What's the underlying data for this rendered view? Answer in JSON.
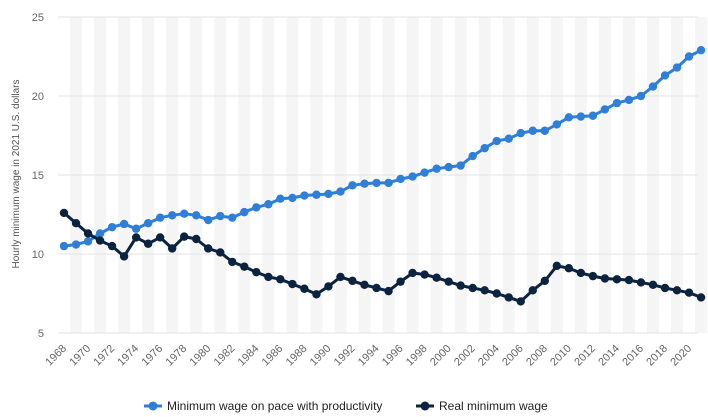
{
  "chart_data": {
    "type": "line",
    "title": "",
    "xlabel": "",
    "ylabel": "Hourly minimum wage in 2021 U.S. dollars",
    "ylim": [
      5,
      25
    ],
    "yticks": [
      5,
      10,
      15,
      20,
      25
    ],
    "xlim": [
      1968,
      2021
    ],
    "x": [
      1968,
      1969,
      1970,
      1971,
      1972,
      1973,
      1974,
      1975,
      1976,
      1977,
      1978,
      1979,
      1980,
      1981,
      1982,
      1983,
      1984,
      1985,
      1986,
      1987,
      1988,
      1989,
      1990,
      1991,
      1992,
      1993,
      1994,
      1995,
      1996,
      1997,
      1998,
      1999,
      2000,
      2001,
      2002,
      2003,
      2004,
      2005,
      2006,
      2007,
      2008,
      2009,
      2010,
      2011,
      2012,
      2013,
      2014,
      2015,
      2016,
      2017,
      2018,
      2019,
      2020,
      2021
    ],
    "xtick_labels": [
      "1968",
      "1970",
      "1972",
      "1974",
      "1976",
      "1978",
      "1980",
      "1982",
      "1984",
      "1986",
      "1988",
      "1990",
      "1992",
      "1994",
      "1996",
      "1998",
      "2000",
      "2002",
      "2004",
      "2006",
      "2008",
      "2010",
      "2012",
      "2014",
      "2016",
      "2018",
      "2020"
    ],
    "grid": true,
    "legend_position": "bottom",
    "series": [
      {
        "name": "Minimum wage on pace with productivity",
        "color": "#2f7ed8",
        "values": [
          10.5,
          10.6,
          10.8,
          11.3,
          11.7,
          11.9,
          11.6,
          11.95,
          12.3,
          12.45,
          12.55,
          12.45,
          12.15,
          12.4,
          12.3,
          12.65,
          12.95,
          13.15,
          13.5,
          13.55,
          13.7,
          13.75,
          13.8,
          13.95,
          14.35,
          14.45,
          14.5,
          14.5,
          14.75,
          14.9,
          15.15,
          15.4,
          15.5,
          15.6,
          16.2,
          16.7,
          17.15,
          17.3,
          17.65,
          17.8,
          17.8,
          18.2,
          18.65,
          18.7,
          18.75,
          19.15,
          19.55,
          19.75,
          20.0,
          20.6,
          21.3,
          21.8,
          22.5,
          22.9
        ]
      },
      {
        "name": "Real minimum wage",
        "color": "#0c2340",
        "values": [
          12.6,
          11.95,
          11.3,
          10.85,
          10.5,
          9.85,
          11.05,
          10.65,
          11.05,
          10.35,
          11.1,
          10.95,
          10.35,
          10.1,
          9.5,
          9.2,
          8.85,
          8.55,
          8.4,
          8.1,
          7.8,
          7.45,
          7.95,
          8.55,
          8.3,
          8.05,
          7.85,
          7.65,
          8.25,
          8.8,
          8.7,
          8.5,
          8.25,
          8.0,
          7.85,
          7.7,
          7.5,
          7.25,
          7.0,
          7.7,
          8.3,
          9.25,
          9.1,
          8.8,
          8.6,
          8.45,
          8.4,
          8.35,
          8.2,
          8.05,
          7.85,
          7.7,
          7.55,
          7.25
        ]
      }
    ]
  }
}
